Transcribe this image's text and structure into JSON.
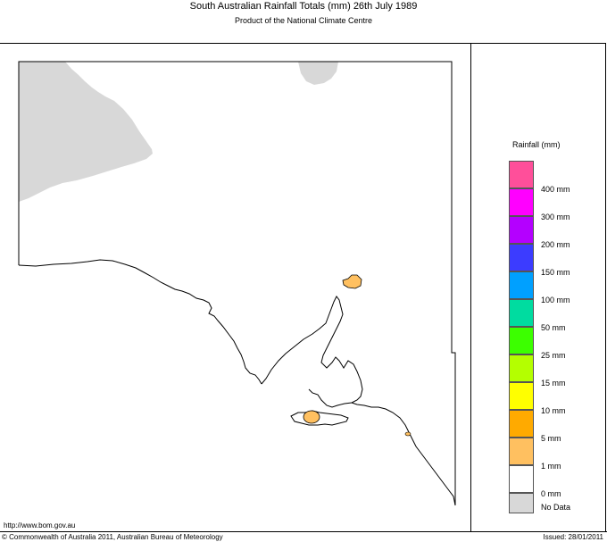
{
  "header": {
    "title": "South Australian Rainfall Totals (mm)    26th July 1989",
    "subtitle": "Product of the National Climate Centre"
  },
  "footer": {
    "url": "http://www.bom.gov.au",
    "copyright": "© Commonwealth of Australia 2011, Australian Bureau of Meteorology",
    "issued": "Issued: 28/01/2011"
  },
  "legend": {
    "title": "Rainfall (mm)",
    "swatches": [
      {
        "color": "#ff4f9a"
      },
      {
        "color": "#ff00ff",
        "label": "400 mm"
      },
      {
        "color": "#b400ff",
        "label": "300 mm"
      },
      {
        "color": "#3c3cff",
        "label": "200 mm"
      },
      {
        "color": "#00a0ff",
        "label": "150 mm"
      },
      {
        "color": "#00dca0",
        "label": "100 mm"
      },
      {
        "color": "#3cff00",
        "label": "50 mm"
      },
      {
        "color": "#b4ff00",
        "label": "25 mm"
      },
      {
        "color": "#ffff00",
        "label": "15 mm"
      },
      {
        "color": "#ffaa00",
        "label": "10 mm"
      },
      {
        "color": "#ffc060",
        "label": "5 mm"
      },
      {
        "color": "#ffffff",
        "label": "1 mm"
      },
      {
        "color": "#d8d8d8",
        "label": "0 mm"
      }
    ],
    "nodata_label": "No Data"
  },
  "colors": {
    "no_data": "#d8d8d8",
    "rain_1_5": "#ffc060",
    "outline": "#000000"
  }
}
